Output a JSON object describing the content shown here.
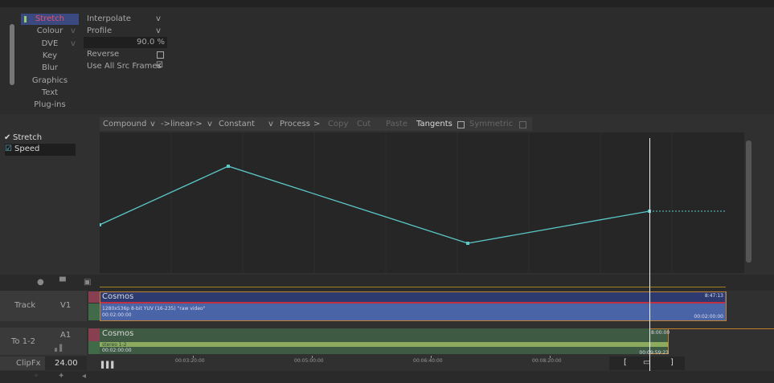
{
  "effects_menu": {
    "items": [
      "Stretch",
      "Colour",
      "DVE",
      "Key",
      "Blur",
      "Graphics",
      "Text",
      "Plug-ins"
    ]
  },
  "properties": {
    "interpolate": "Interpolate",
    "profile": "Profile",
    "amount": "90.0 %",
    "reverse": "Reverse",
    "use_all_src_frames": "Use All Src Frames"
  },
  "toolbar": {
    "compound": "Compound",
    "linear": "->linear->",
    "constant": "Constant",
    "process": "Process",
    "copy": "Copy",
    "cut": "Cut",
    "paste": "Paste",
    "tangents": "Tangents",
    "symmetric": "Symmetric"
  },
  "tree": {
    "group": "Stretch",
    "item": "Speed"
  },
  "timeline": {
    "video": {
      "label": "Track",
      "track": "V1",
      "clip": "Cosmos",
      "format": "1280x536p 8-bit YUV (16-235) \"raw video\"",
      "start": "00:02:00:00",
      "end_time": "8:47:13",
      "end_tc": "00:02:00:00"
    },
    "audio": {
      "label": "To 1-2",
      "track": "A1",
      "clip": "Cosmos",
      "channels": "stereo 1-2",
      "start": "00:02:00:00",
      "end_time": "8:00:00",
      "end_tc": "00:09:59:23"
    },
    "clipfx": {
      "label": "ClipFx",
      "value": "24.00"
    },
    "ruler": [
      "00:03:20:00",
      "00:05:00:00",
      "00:06:40:00",
      "00:08:20:00"
    ]
  }
}
